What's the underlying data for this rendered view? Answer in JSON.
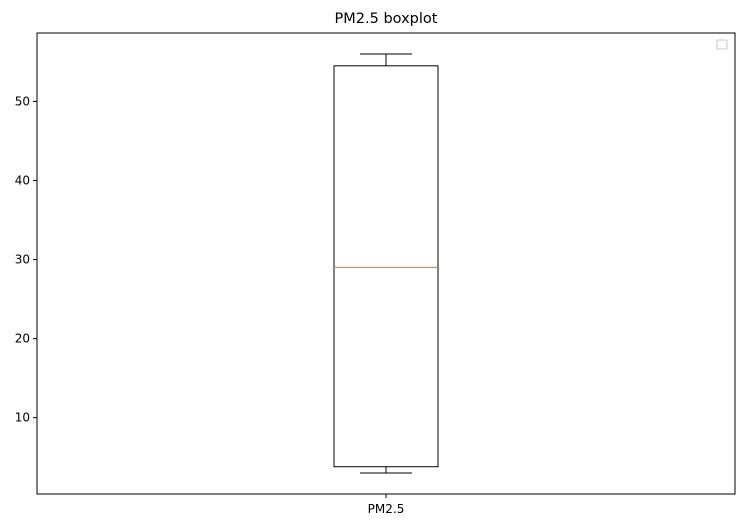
{
  "chart_data": {
    "type": "boxplot",
    "title": "PM2.5 boxplot",
    "xlabel": "",
    "ylabel": "",
    "categories": [
      "PM2.5"
    ],
    "boxes": [
      {
        "category": "PM2.5",
        "whisker_low": 3,
        "q1": 3.8,
        "median": 29,
        "q3": 54.5,
        "whisker_high": 56
      }
    ],
    "ylim": [
      0.35,
      58.65
    ],
    "yticks": [
      10,
      20,
      30,
      40,
      50
    ],
    "ytick_labels": [
      "10",
      "20",
      "30",
      "40",
      "50"
    ],
    "grid": false,
    "legend": {
      "placement": "top-right",
      "entries": []
    },
    "colors": {
      "box": "#000000",
      "median": "#ff7f0e",
      "whisker": "#000000"
    }
  }
}
